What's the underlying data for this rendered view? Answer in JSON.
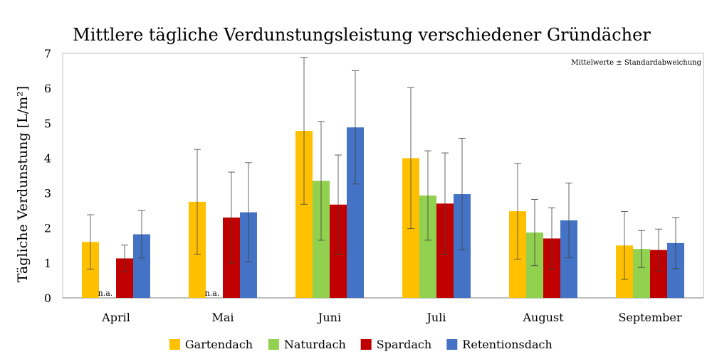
{
  "chart_data": {
    "type": "bar",
    "title": "Mittlere tägliche Verdunstungsleistung  verschiedener Gründächer",
    "ylabel": "Tägliche Verdunstung [L/m²]",
    "xlabel": "",
    "annotation": "Mittelwerte ± Standardabweichung",
    "na_label": "n.a.",
    "ylim": [
      0,
      7
    ],
    "yticks": [
      "0",
      "1",
      "2",
      "3",
      "4",
      "5",
      "6",
      "7"
    ],
    "categories": [
      "April",
      "Mai",
      "Juni",
      "Juli",
      "August",
      "September"
    ],
    "legend_position": "bottom",
    "grid": false,
    "series": [
      {
        "name": "Gartendach",
        "color": "#FFC000",
        "values": [
          1.6,
          2.75,
          4.78,
          4.0,
          2.48,
          1.5
        ],
        "errors": [
          0.78,
          1.5,
          2.1,
          2.02,
          1.37,
          0.97
        ]
      },
      {
        "name": "Naturdach",
        "color": "#92D050",
        "values": [
          null,
          null,
          3.35,
          2.93,
          1.87,
          1.4
        ],
        "errors": [
          null,
          null,
          1.7,
          1.28,
          0.95,
          0.53
        ]
      },
      {
        "name": "Spardach",
        "color": "#C00000",
        "values": [
          1.13,
          2.3,
          2.67,
          2.7,
          1.7,
          1.37
        ],
        "errors": [
          0.38,
          1.3,
          1.42,
          1.45,
          0.88,
          0.6
        ]
      },
      {
        "name": "Retentionsdach",
        "color": "#4472C4",
        "values": [
          1.82,
          2.45,
          4.88,
          2.97,
          2.22,
          1.57
        ],
        "errors": [
          0.68,
          1.42,
          1.62,
          1.6,
          1.07,
          0.73
        ]
      }
    ]
  }
}
